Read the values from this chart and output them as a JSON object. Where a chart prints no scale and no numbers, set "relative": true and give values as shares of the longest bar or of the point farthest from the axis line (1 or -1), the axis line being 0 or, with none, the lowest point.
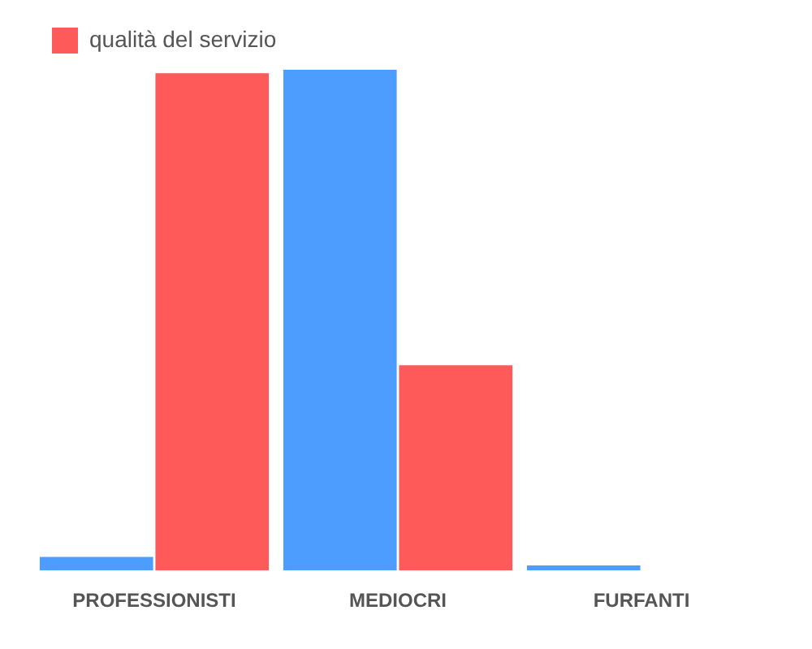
{
  "chart_data": {
    "type": "bar",
    "relative": true,
    "categories": [
      "PROFESSIONISTI",
      "MEDIOCRI",
      "FURFANTI"
    ],
    "series": [
      {
        "color": "#4c9dff",
        "values": [
          0.027,
          1,
          0.01
        ]
      },
      {
        "name": "qualità del servizio",
        "color": "#ff5a5a",
        "values": [
          0.993,
          0.41,
          0
        ]
      }
    ],
    "legend": "top left",
    "grid": false
  }
}
